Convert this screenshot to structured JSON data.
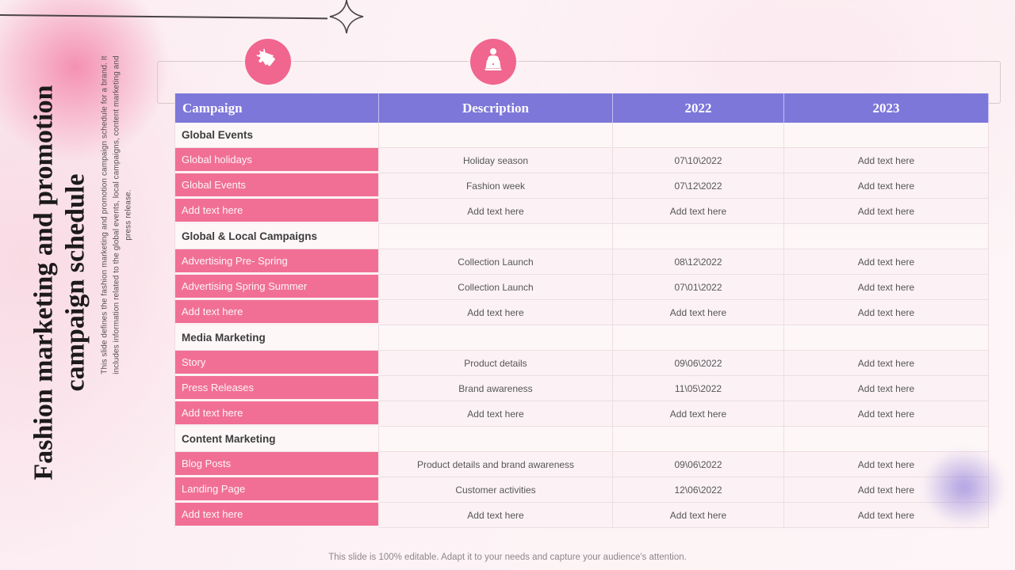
{
  "slide": {
    "title_line1": "Fashion marketing and promotion",
    "title_line2": "campaign schedule",
    "subtitle": "This slide defines the fashion marketing and promotion campaign schedule for a brand. It includes information related to the global events, local campaigns, content marketing and press release.",
    "footer": "This slide is 100% editable. Adapt it to your needs and capture your audience's attention."
  },
  "icons": {
    "megaphone": "megaphone-icon",
    "presenter": "presenter-icon",
    "sparkle": "sparkle-star-icon"
  },
  "colors": {
    "header_purple": "#7d77da",
    "row_pink": "#f16f95",
    "icon_circle_pink": "#f0668e",
    "background_pink": "#fdf3f6",
    "blob_purple": "#7e6dd5"
  },
  "table": {
    "headers": [
      "Campaign",
      "Description",
      "2022",
      "2023"
    ],
    "sections": [
      {
        "label": "Global Events",
        "rows": [
          [
            "Global holidays",
            "Holiday season",
            "07\\10\\2022",
            "Add text here"
          ],
          [
            "Global Events",
            "Fashion week",
            "07\\12\\2022",
            "Add text here"
          ],
          [
            "Add text here",
            "Add text here",
            "Add text here",
            "Add text here"
          ]
        ]
      },
      {
        "label": "Global & Local Campaigns",
        "rows": [
          [
            "Advertising Pre- Spring",
            "Collection Launch",
            "08\\12\\2022",
            "Add text here"
          ],
          [
            "Advertising Spring Summer",
            "Collection Launch",
            "07\\01\\2022",
            "Add text here"
          ],
          [
            "Add text here",
            "Add text here",
            "Add text here",
            "Add text here"
          ]
        ]
      },
      {
        "label": "Media Marketing",
        "rows": [
          [
            "Story",
            "Product details",
            "09\\06\\2022",
            "Add text here"
          ],
          [
            "Press Releases",
            "Brand awareness",
            "11\\05\\2022",
            "Add text here"
          ],
          [
            "Add text here",
            "Add text here",
            "Add text here",
            "Add text here"
          ]
        ]
      },
      {
        "label": "Content Marketing",
        "rows": [
          [
            "Blog Posts",
            "Product details and brand awareness",
            "09\\06\\2022",
            "Add text here"
          ],
          [
            "Landing Page",
            "Customer activities",
            "12\\06\\2022",
            "Add text here"
          ],
          [
            "Add text here",
            "Add text here",
            "Add text here",
            "Add text here"
          ]
        ]
      }
    ]
  }
}
